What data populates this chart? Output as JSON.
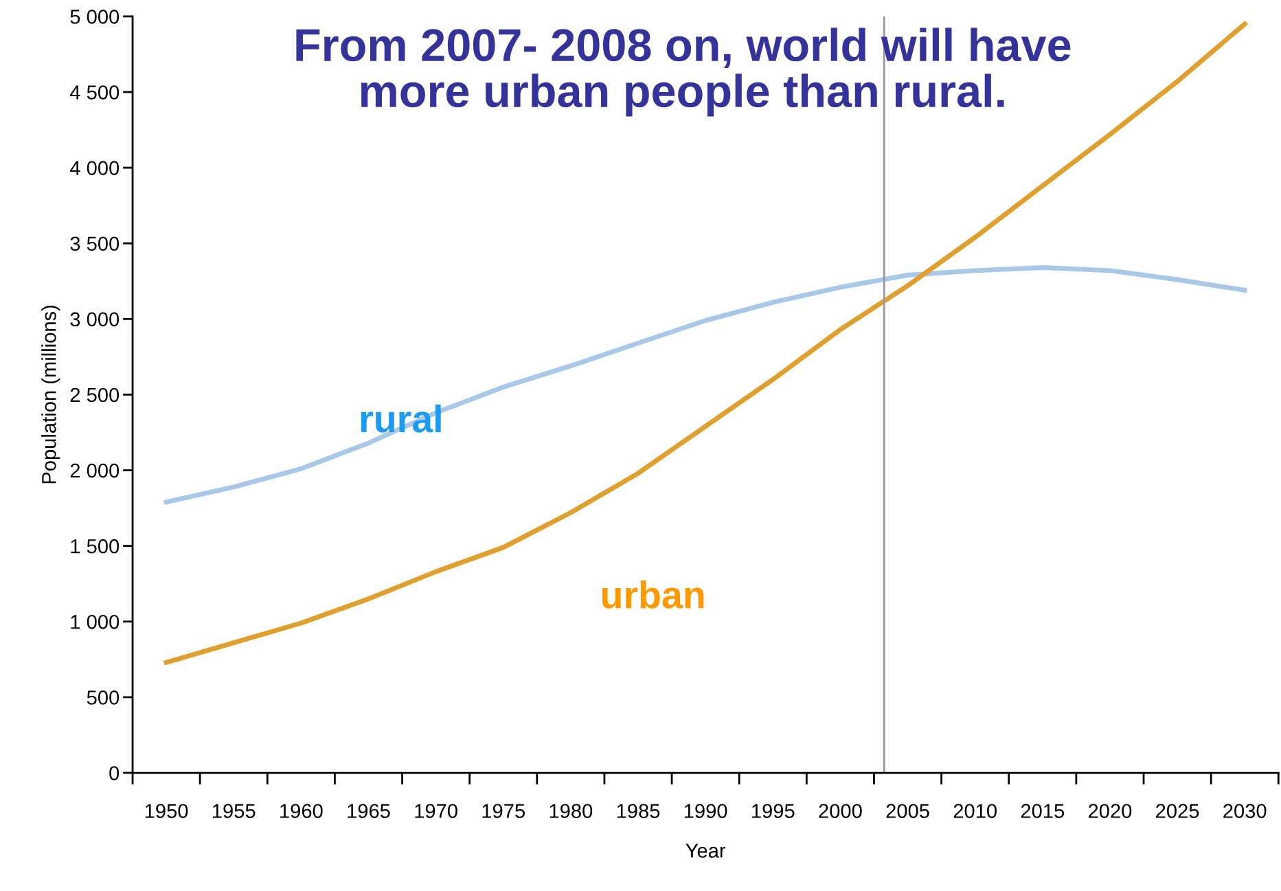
{
  "chart_data": {
    "type": "line",
    "title": "From 2007- 2008 on, world will have\nmore urban people than rural.",
    "xlabel": "Year",
    "ylabel": "Population (millions)",
    "x": [
      1950,
      1955,
      1960,
      1965,
      1970,
      1975,
      1980,
      1985,
      1990,
      1995,
      2000,
      2005,
      2010,
      2015,
      2020,
      2025,
      2030
    ],
    "series": [
      {
        "name": "rural",
        "color": "#a9c8e8",
        "values": [
          1790,
          1890,
          2010,
          2180,
          2380,
          2550,
          2690,
          2840,
          2990,
          3110,
          3210,
          3290,
          3320,
          3340,
          3320,
          3260,
          3190
        ]
      },
      {
        "name": "urban",
        "color": "#e0a030",
        "values": [
          730,
          860,
          990,
          1150,
          1330,
          1490,
          1720,
          1980,
          2290,
          2600,
          2930,
          3220,
          3540,
          3880,
          4220,
          4570,
          4950
        ]
      }
    ],
    "xlim": [
      1947.5,
      2032.5
    ],
    "xticks": [
      1950,
      1955,
      1960,
      1965,
      1970,
      1975,
      1980,
      1985,
      1990,
      1995,
      2000,
      2005,
      2010,
      2015,
      2020,
      2025,
      2030
    ],
    "ylim": [
      0,
      5000
    ],
    "yticks": [
      0,
      500,
      {
        "value": 1000,
        "label": "1 000"
      },
      {
        "value": 1500,
        "label": "1 500"
      },
      {
        "value": 2000,
        "label": "2 000"
      },
      {
        "value": 2500,
        "label": "2 500"
      },
      {
        "value": 3000,
        "label": "3 000"
      },
      {
        "value": 3500,
        "label": "3 500"
      },
      {
        "value": 4000,
        "label": "4 000"
      },
      {
        "value": 4500,
        "label": "4 500"
      },
      {
        "value": 5000,
        "label": "5 000"
      }
    ],
    "ref_lines": [
      {
        "axis": "x",
        "value": 2003.25,
        "color": "#999999"
      }
    ],
    "grid": false,
    "legend": false,
    "marker": "none",
    "line_style": "solid"
  }
}
